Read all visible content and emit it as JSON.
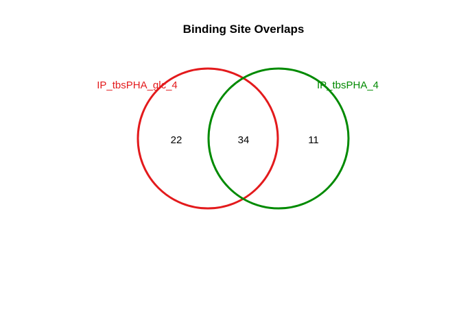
{
  "title": "Binding Site Overlaps",
  "sets": [
    {
      "name": "IP_tbsPHA_glc_4",
      "color": "#e31a1c"
    },
    {
      "name": "IP_tbsPHA_4",
      "color": "#008a00"
    }
  ],
  "regions": {
    "only_a": "22",
    "both": "34",
    "only_b": "11"
  }
}
